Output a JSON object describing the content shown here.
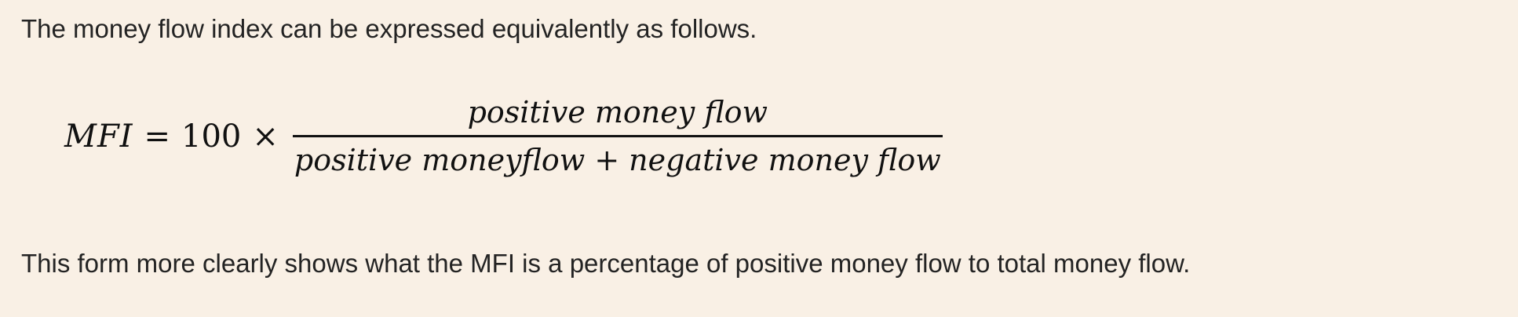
{
  "intro_text": "The money flow index can be expressed equivalently as follows.",
  "formula": {
    "lhs": "MFI",
    "equals": "=",
    "constant": "100",
    "times": "×",
    "numerator": "positive money flow",
    "denominator_left": "positive moneyflow",
    "plus": "+",
    "denominator_right": "negative money flow"
  },
  "outro_text": "This form more clearly shows what the MFI is a percentage of positive money flow to total money flow."
}
